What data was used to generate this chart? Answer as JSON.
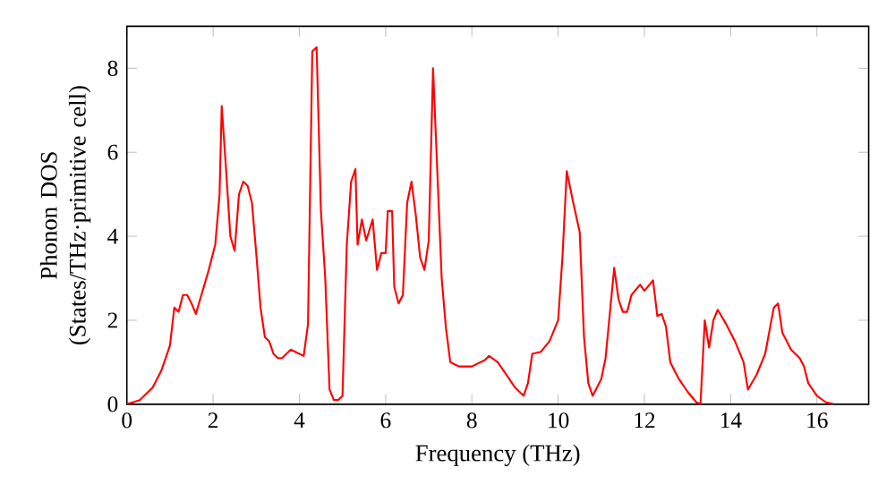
{
  "chart_data": {
    "type": "line",
    "xlabel": "Frequency (THz)",
    "ylabel": "Phonon DOS (States/THz·primitive cell)",
    "xlim": [
      0,
      17.2
    ],
    "ylim": [
      0,
      9
    ],
    "xticks": [
      0,
      2,
      4,
      6,
      8,
      10,
      12,
      14,
      16
    ],
    "yticks": [
      0,
      2,
      4,
      6,
      8
    ],
    "grid": false,
    "marker": "none",
    "line_style": "solid",
    "series": [
      {
        "color": "#ff0000",
        "x": [
          0,
          0.3,
          0.6,
          0.8,
          1.0,
          1.1,
          1.2,
          1.3,
          1.4,
          1.5,
          1.6,
          1.7,
          1.9,
          2.05,
          2.15,
          2.2,
          2.3,
          2.4,
          2.5,
          2.6,
          2.7,
          2.8,
          2.9,
          3.0,
          3.1,
          3.2,
          3.3,
          3.4,
          3.5,
          3.6,
          3.8,
          4.0,
          4.1,
          4.2,
          4.3,
          4.4,
          4.5,
          4.6,
          4.7,
          4.8,
          4.9,
          5.0,
          5.1,
          5.2,
          5.3,
          5.35,
          5.45,
          5.55,
          5.7,
          5.8,
          5.9,
          6.0,
          6.05,
          6.15,
          6.2,
          6.3,
          6.4,
          6.5,
          6.6,
          6.7,
          6.8,
          6.9,
          7.0,
          7.1,
          7.3,
          7.4,
          7.5,
          7.7,
          8.0,
          8.3,
          8.4,
          8.6,
          8.8,
          9.0,
          9.2,
          9.3,
          9.4,
          9.6,
          9.8,
          10.0,
          10.1,
          10.2,
          10.35,
          10.5,
          10.6,
          10.7,
          10.8,
          11.0,
          11.1,
          11.3,
          11.4,
          11.5,
          11.6,
          11.7,
          11.9,
          12.0,
          12.2,
          12.3,
          12.4,
          12.5,
          12.6,
          12.8,
          13.0,
          13.2,
          13.3,
          13.4,
          13.5,
          13.6,
          13.7,
          13.9,
          14.1,
          14.3,
          14.4,
          14.6,
          14.8,
          15.0,
          15.1,
          15.2,
          15.4,
          15.6,
          15.7,
          15.8,
          16.0,
          16.2,
          16.4
        ],
        "values": [
          0,
          0.1,
          0.4,
          0.8,
          1.4,
          2.3,
          2.2,
          2.6,
          2.6,
          2.4,
          2.15,
          2.5,
          3.2,
          3.8,
          5.0,
          7.1,
          5.6,
          4.0,
          3.65,
          5.0,
          5.3,
          5.2,
          4.8,
          3.6,
          2.3,
          1.6,
          1.5,
          1.2,
          1.1,
          1.1,
          1.3,
          1.2,
          1.15,
          1.9,
          8.4,
          8.5,
          4.6,
          3.0,
          0.35,
          0.1,
          0.1,
          0.2,
          3.8,
          5.3,
          5.6,
          3.8,
          4.4,
          3.9,
          4.4,
          3.2,
          3.6,
          3.6,
          4.6,
          4.6,
          2.8,
          2.4,
          2.6,
          4.8,
          5.3,
          4.5,
          3.5,
          3.2,
          3.9,
          8.0,
          3.0,
          1.8,
          1.0,
          0.9,
          0.9,
          1.05,
          1.15,
          1.0,
          0.7,
          0.4,
          0.2,
          0.5,
          1.2,
          1.25,
          1.5,
          2.0,
          3.5,
          5.55,
          4.8,
          4.1,
          1.6,
          0.5,
          0.2,
          0.6,
          1.1,
          3.25,
          2.5,
          2.2,
          2.2,
          2.6,
          2.85,
          2.7,
          2.95,
          2.1,
          2.15,
          1.85,
          1.0,
          0.6,
          0.3,
          0.05,
          0.0,
          2.0,
          1.35,
          2.0,
          2.25,
          1.9,
          1.5,
          1.0,
          0.35,
          0.7,
          1.2,
          2.3,
          2.4,
          1.7,
          1.3,
          1.1,
          0.9,
          0.5,
          0.2,
          0.05,
          0
        ]
      }
    ]
  }
}
